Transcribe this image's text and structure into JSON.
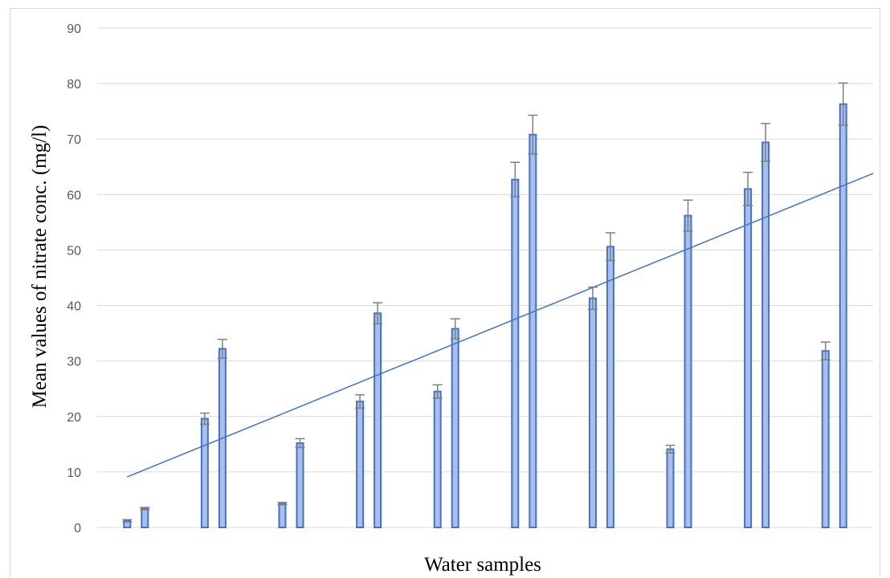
{
  "chart_data": {
    "type": "bar",
    "xlabel": "Water samples",
    "ylabel": "Mean values of nitrate conc. (mg/l)",
    "ylim": [
      0,
      90
    ],
    "yticks": [
      0,
      10,
      20,
      30,
      40,
      50,
      60,
      70,
      80,
      90
    ],
    "grid": true,
    "categories": [
      "",
      "",
      "",
      "",
      "",
      "",
      "",
      "",
      "",
      ""
    ],
    "series": [
      {
        "values": [
          1.2,
          19.6,
          4.3,
          22.7,
          24.5,
          62.7,
          41.3,
          14.1,
          61.0,
          31.8
        ],
        "errors": [
          0.2,
          1.0,
          0.2,
          1.2,
          1.2,
          3.1,
          2.0,
          0.7,
          3.0,
          1.6
        ],
        "color": "#a9bfe9"
      },
      {
        "values": [
          3.4,
          32.2,
          15.2,
          38.6,
          35.8,
          70.8,
          50.6,
          56.2,
          69.4,
          76.3
        ],
        "errors": [
          0.2,
          1.7,
          0.8,
          1.9,
          1.8,
          3.5,
          2.5,
          2.8,
          3.4,
          3.8
        ],
        "color": "#a9bfe9"
      }
    ],
    "trendline": {
      "type": "linear",
      "start": 9.1,
      "end": 63.8,
      "color": "#4472c4"
    }
  }
}
